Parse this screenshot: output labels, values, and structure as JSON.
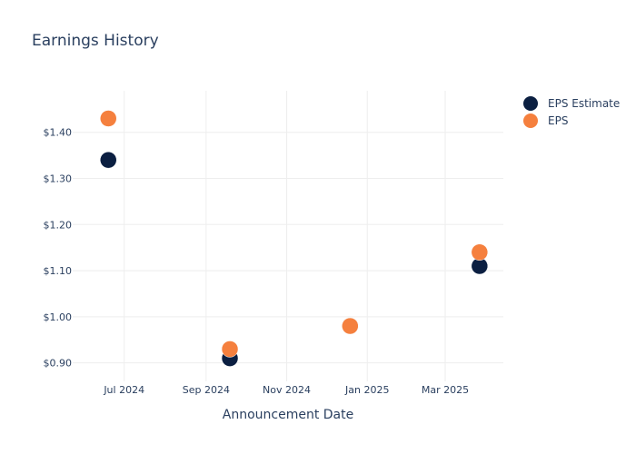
{
  "chart_data": {
    "type": "scatter",
    "title": "Earnings History",
    "xlabel": "Announcement Date",
    "ylabel": "",
    "x_axis_type": "date",
    "xlim": [
      "2024-05-23",
      "2025-04-14"
    ],
    "ylim": [
      0.86,
      1.49
    ],
    "x_ticks": [
      {
        "date": "2024-07-01",
        "label": "Jul 2024"
      },
      {
        "date": "2024-09-01",
        "label": "Sep 2024"
      },
      {
        "date": "2024-11-01",
        "label": "Nov 2024"
      },
      {
        "date": "2025-01-01",
        "label": "Jan 2025"
      },
      {
        "date": "2025-03-01",
        "label": "Mar 2025"
      }
    ],
    "y_ticks": [
      {
        "value": 0.9,
        "label": "$0.90"
      },
      {
        "value": 1.0,
        "label": "$1.00"
      },
      {
        "value": 1.1,
        "label": "$1.10"
      },
      {
        "value": 1.2,
        "label": "$1.20"
      },
      {
        "value": 1.3,
        "label": "$1.30"
      },
      {
        "value": 1.4,
        "label": "$1.40"
      }
    ],
    "grid": true,
    "legend_position": "top-right",
    "series": [
      {
        "name": "EPS Estimate",
        "color": "#0b1f41",
        "points": [
          {
            "x": "2024-06-19",
            "y": 1.34
          },
          {
            "x": "2024-09-19",
            "y": 0.91
          },
          {
            "x": "2024-12-19",
            "y": 0.98
          },
          {
            "x": "2025-03-27",
            "y": 1.11
          }
        ]
      },
      {
        "name": "EPS",
        "color": "#f5803e",
        "points": [
          {
            "x": "2024-06-19",
            "y": 1.43
          },
          {
            "x": "2024-09-19",
            "y": 0.93
          },
          {
            "x": "2024-12-19",
            "y": 0.98
          },
          {
            "x": "2025-03-27",
            "y": 1.14
          }
        ]
      }
    ]
  }
}
